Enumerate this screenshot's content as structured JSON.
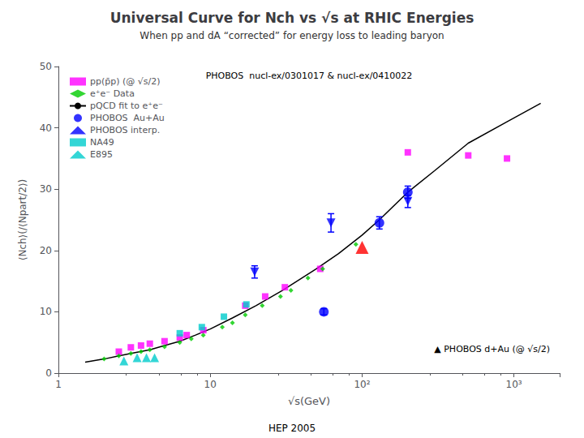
{
  "chart_data": {
    "type": "scatter",
    "title": "Universal Curve for Nch vs √s at RHIC Energies",
    "subtitle": "When pp and dA “corrected” for energy loss to leading baryon",
    "xlabel": "√s(GeV)",
    "ylabel": "⟨Nch⟩(/⟨Npart/2⟩)",
    "annotations": [
      "PHOBOS  nucl-ex/0301017 & nucl-ex/0410022",
      "▲ PHOBOS d+Au (@ √s/2)",
      "HEP 2005"
    ],
    "log": "x",
    "grid": false,
    "legend": "upper left",
    "xlim": [
      1,
      2000
    ],
    "xticks": [
      1,
      10,
      {
        "value": 100,
        "label": "10²"
      },
      {
        "value": 1000,
        "label": "10³"
      }
    ],
    "ylim": [
      0,
      50
    ],
    "yticks": [
      0,
      10,
      20,
      30,
      40,
      50
    ],
    "series": [
      {
        "name": "pp(p̄p) (@ √s/2)",
        "type": "scatter",
        "marker": "square",
        "color": "#ff00ff",
        "x": [
          2.5,
          3.0,
          3.5,
          4.0,
          5.0,
          6.3,
          7.0,
          9.0,
          17.0,
          23.0,
          31.0,
          53.0,
          200.0,
          500.0,
          900.0
        ],
        "values": [
          3.5,
          4.2,
          4.5,
          4.8,
          5.2,
          5.8,
          6.2,
          7.0,
          11.0,
          12.5,
          14.0,
          17.0,
          36.0,
          35.5,
          35.0
        ]
      },
      {
        "name": "e⁺e⁻ Data",
        "type": "scatter",
        "marker": "diamond",
        "color": "#00cc00",
        "x": [
          2.0,
          2.5,
          3.0,
          3.5,
          4.0,
          5.0,
          6.3,
          7.5,
          9.0,
          12.0,
          14.0,
          17.0,
          22.0,
          29.0,
          34.0,
          44.0,
          55.0,
          91.0
        ],
        "values": [
          2.3,
          2.8,
          3.2,
          3.5,
          3.8,
          4.3,
          5.0,
          5.6,
          6.2,
          7.5,
          8.2,
          9.5,
          11.0,
          12.5,
          13.5,
          15.5,
          17.0,
          21.0
        ]
      },
      {
        "name": "pQCD fit to e⁺e⁻",
        "type": "line",
        "line_style": "solid",
        "color": "#000000",
        "x": [
          1.5,
          2.0,
          2.5,
          3.0,
          4.0,
          5.0,
          6.3,
          8.0,
          10.0,
          14.0,
          20.0,
          30.0,
          50.0,
          70.0,
          100.0,
          130.0,
          200.0,
          300.0,
          500.0,
          900.0,
          1500.0
        ],
        "values": [
          1.8,
          2.3,
          2.8,
          3.2,
          3.8,
          4.5,
          5.2,
          6.2,
          7.2,
          9.0,
          11.0,
          13.5,
          17.0,
          19.5,
          22.5,
          25.0,
          29.5,
          33.0,
          37.5,
          41.0,
          44.0
        ]
      },
      {
        "name": "PHOBOS  Au+Au",
        "type": "scatter",
        "marker": "circle",
        "color": "#0000ff",
        "x": [
          56.0,
          130.0,
          200.0
        ],
        "values": [
          10.0,
          24.5,
          29.5
        ],
        "yerr": [
          0.5,
          1.0,
          1.0
        ]
      },
      {
        "name": "PHOBOS interp.",
        "type": "scatter",
        "marker": "triangle_down",
        "color": "#0000ff",
        "x": [
          19.6,
          62.4,
          200.0
        ],
        "values": [
          16.5,
          24.5,
          28.0
        ],
        "yerr": [
          1.0,
          1.5,
          1.0
        ]
      },
      {
        "name": "NA49",
        "type": "scatter",
        "marker": "square",
        "color": "#00cccc",
        "x": [
          6.3,
          8.8,
          12.3,
          17.3
        ],
        "values": [
          6.5,
          7.5,
          9.2,
          11.2
        ]
      },
      {
        "name": "E895",
        "type": "scatter",
        "marker": "triangle",
        "color": "#00cccc",
        "x": [
          2.7,
          3.3,
          3.8,
          4.3
        ],
        "values": [
          2.0,
          2.5,
          2.5,
          2.5
        ]
      },
      {
        "type": "scatter",
        "marker": "triangle",
        "color": "#ff0000",
        "x": [
          100.0
        ],
        "values": [
          20.5
        ]
      }
    ]
  }
}
